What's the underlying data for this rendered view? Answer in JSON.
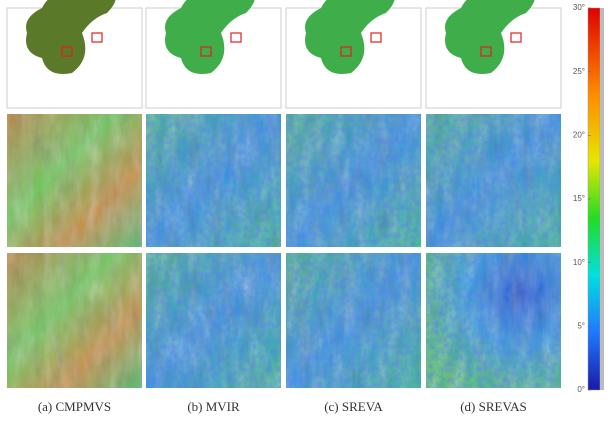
{
  "figure": {
    "panels": [
      {
        "caption": "(a) CMPMVS"
      },
      {
        "caption": "(b) MVIR"
      },
      {
        "caption": "(c) SREVA"
      },
      {
        "caption": "(d) SREVAS"
      }
    ],
    "colorbar": {
      "range": [
        0,
        30
      ],
      "ticks": [
        {
          "value": 0,
          "label": "0°"
        },
        {
          "value": 5,
          "label": "5°"
        },
        {
          "value": 10,
          "label": "10°"
        },
        {
          "value": 15,
          "label": "15°"
        },
        {
          "value": 20,
          "label": "20°"
        },
        {
          "value": 25,
          "label": "25°"
        },
        {
          "value": 30,
          "label": "30°"
        }
      ]
    }
  }
}
